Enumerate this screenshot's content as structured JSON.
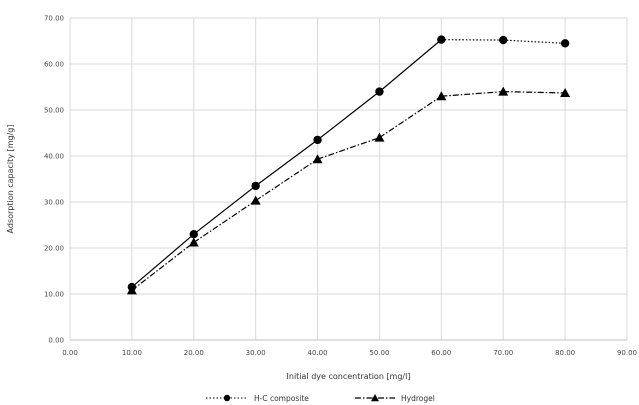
{
  "chart_data": {
    "type": "line",
    "xlabel": "Initial dye concentration [mg/l]",
    "ylabel": "Adsorption capacity [mg/g]",
    "xlim": [
      0,
      90
    ],
    "ylim": [
      0,
      70
    ],
    "x_ticks": [
      0,
      10,
      20,
      30,
      40,
      50,
      60,
      70,
      80,
      90
    ],
    "x_tick_labels": [
      "0.00",
      "10.00",
      "20.00",
      "30.00",
      "40.00",
      "50.00",
      "60.00",
      "70.00",
      "80.00",
      "90.00"
    ],
    "y_ticks": [
      0,
      10,
      20,
      30,
      40,
      50,
      60,
      70
    ],
    "y_tick_labels": [
      "0.00",
      "10.00",
      "20.00",
      "30.00",
      "40.00",
      "50.00",
      "60.00",
      "70.00"
    ],
    "grid": "vertical and horizontal",
    "legend_position": "bottom",
    "series": [
      {
        "name": "H-C composite",
        "marker": "circle",
        "line_style": "solid-then-dotted",
        "color": "#000000",
        "x": [
          10,
          20,
          30,
          40,
          50,
          60,
          70,
          80
        ],
        "y": [
          11.5,
          23.0,
          33.5,
          43.5,
          54.0,
          65.3,
          65.2,
          64.5
        ]
      },
      {
        "name": "Hydrogel",
        "marker": "triangle",
        "line_style": "dash-dot",
        "color": "#000000",
        "x": [
          10,
          20,
          30,
          40,
          50,
          60,
          70,
          80
        ],
        "y": [
          10.8,
          21.2,
          30.3,
          39.3,
          44.0,
          53.0,
          54.0,
          53.7
        ]
      }
    ]
  }
}
